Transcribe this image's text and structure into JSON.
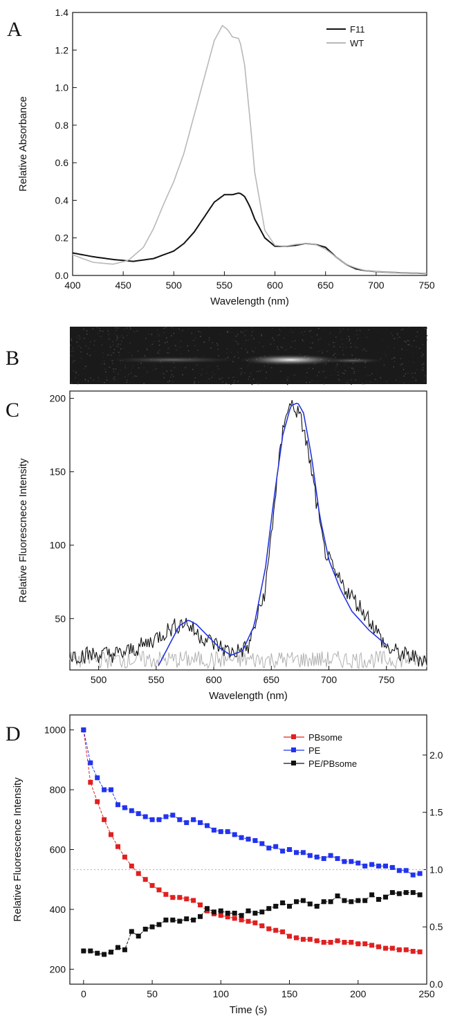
{
  "chart_data": [
    {
      "panel": "A",
      "type": "line",
      "xlabel": "Wavelength (nm)",
      "ylabel": "Relative Absorbance",
      "xlim": [
        400,
        750
      ],
      "ylim": [
        0,
        1.4
      ],
      "xticks": [
        400,
        450,
        500,
        550,
        600,
        650,
        700,
        750
      ],
      "yticks": [
        0.0,
        0.2,
        0.4,
        0.6,
        0.8,
        1.0,
        1.2,
        1.4
      ],
      "legend_position": "top-right",
      "series": [
        {
          "name": "F11",
          "color": "#111111",
          "x": [
            400,
            420,
            440,
            460,
            480,
            500,
            510,
            520,
            530,
            540,
            550,
            558,
            565,
            570,
            575,
            580,
            590,
            600,
            610,
            620,
            630,
            640,
            650,
            660,
            670,
            680,
            690,
            700,
            720,
            750
          ],
          "y": [
            0.12,
            0.1,
            0.085,
            0.075,
            0.09,
            0.13,
            0.17,
            0.23,
            0.31,
            0.39,
            0.43,
            0.43,
            0.44,
            0.42,
            0.37,
            0.3,
            0.2,
            0.155,
            0.155,
            0.16,
            0.17,
            0.165,
            0.15,
            0.1,
            0.06,
            0.035,
            0.025,
            0.02,
            0.015,
            0.01
          ]
        },
        {
          "name": "WT",
          "color": "#b8b8b8",
          "x": [
            400,
            420,
            440,
            455,
            470,
            480,
            490,
            500,
            510,
            520,
            530,
            540,
            548,
            553,
            558,
            565,
            570,
            575,
            580,
            590,
            600,
            610,
            620,
            630,
            640,
            650,
            660,
            670,
            680,
            690,
            700,
            720,
            750
          ],
          "y": [
            0.11,
            0.07,
            0.06,
            0.08,
            0.15,
            0.25,
            0.38,
            0.5,
            0.65,
            0.85,
            1.05,
            1.25,
            1.33,
            1.31,
            1.27,
            1.26,
            1.12,
            0.85,
            0.55,
            0.24,
            0.16,
            0.155,
            0.165,
            0.17,
            0.165,
            0.14,
            0.1,
            0.06,
            0.04,
            0.025,
            0.02,
            0.015,
            0.01
          ]
        }
      ]
    },
    {
      "panel": "B",
      "type": "image",
      "description_free": true
    },
    {
      "panel": "C",
      "type": "line",
      "xlabel": "Wavelength (nm)",
      "ylabel": "Relative Fluorescnece Intensity",
      "xlim": [
        475,
        785
      ],
      "ylim": [
        15,
        205
      ],
      "xticks": [
        500,
        550,
        600,
        650,
        700,
        750
      ],
      "yticks": [
        50,
        100,
        150,
        200
      ],
      "series": [
        {
          "name": "",
          "color": "#111111",
          "style": "noisy",
          "x": [
            475,
            520,
            540,
            560,
            575,
            585,
            600,
            615,
            630,
            645,
            655,
            662,
            668,
            672,
            678,
            685,
            695,
            705,
            720,
            735,
            750,
            765,
            785
          ],
          "y": [
            25,
            26,
            32,
            42,
            48,
            40,
            33,
            27,
            30,
            70,
            145,
            190,
            196,
            192,
            180,
            150,
            100,
            80,
            65,
            50,
            30,
            25,
            22
          ]
        },
        {
          "name": "",
          "color": "#2233dd",
          "style": "smooth",
          "x": [
            552,
            560,
            570,
            578,
            585,
            595,
            605,
            615,
            625,
            635,
            645,
            652,
            660,
            667,
            673,
            678,
            685,
            692,
            700,
            710,
            720,
            735,
            750
          ],
          "y": [
            18,
            30,
            45,
            49,
            46,
            38,
            30,
            25,
            28,
            45,
            85,
            130,
            175,
            195,
            197,
            190,
            160,
            120,
            90,
            70,
            55,
            42,
            32
          ]
        },
        {
          "name": "",
          "color": "#b0b0b0",
          "style": "noisy",
          "x": [
            475,
            785
          ],
          "y": [
            22,
            22
          ]
        }
      ]
    },
    {
      "panel": "D",
      "type": "scatter",
      "xlabel": "Time (s)",
      "ylabel": "Relative Fluorescence Intensity",
      "xlim": [
        -10,
        250
      ],
      "ylim": [
        150,
        1050
      ],
      "y2lim": [
        0.0,
        2.35
      ],
      "xticks": [
        0,
        50,
        100,
        150,
        200,
        250
      ],
      "yticks": [
        200,
        400,
        600,
        800,
        1000
      ],
      "y2ticks": [
        "0.0",
        "0.5",
        "1.0",
        "1.5",
        "2.0"
      ],
      "y2tick_values": [
        0.0,
        0.5,
        1.0,
        1.5,
        2.0
      ],
      "reference_line_y2": 1.0,
      "legend_position": "top-right",
      "series": [
        {
          "name": "PBsome",
          "color": "#e02020",
          "axis": "left",
          "x": [
            0,
            5,
            10,
            15,
            20,
            25,
            30,
            35,
            40,
            45,
            50,
            55,
            60,
            65,
            70,
            75,
            80,
            85,
            90,
            95,
            100,
            105,
            110,
            115,
            120,
            125,
            130,
            135,
            140,
            145,
            150,
            155,
            160,
            165,
            170,
            175,
            180,
            185,
            190,
            195,
            200,
            205,
            210,
            215,
            220,
            225,
            230,
            235,
            240,
            245
          ],
          "y": [
            1000,
            825,
            760,
            700,
            650,
            610,
            575,
            545,
            520,
            500,
            480,
            465,
            450,
            440,
            440,
            435,
            430,
            415,
            395,
            385,
            380,
            375,
            370,
            365,
            360,
            355,
            345,
            335,
            330,
            325,
            310,
            305,
            300,
            300,
            295,
            290,
            290,
            295,
            290,
            290,
            285,
            285,
            280,
            275,
            270,
            270,
            265,
            265,
            260,
            258
          ]
        },
        {
          "name": "PE",
          "color": "#2233ee",
          "axis": "left",
          "x": [
            0,
            5,
            10,
            15,
            20,
            25,
            30,
            35,
            40,
            45,
            50,
            55,
            60,
            65,
            70,
            75,
            80,
            85,
            90,
            95,
            100,
            105,
            110,
            115,
            120,
            125,
            130,
            135,
            140,
            145,
            150,
            155,
            160,
            165,
            170,
            175,
            180,
            185,
            190,
            195,
            200,
            205,
            210,
            215,
            220,
            225,
            230,
            235,
            240,
            245
          ],
          "y": [
            1000,
            890,
            840,
            800,
            800,
            750,
            740,
            730,
            720,
            710,
            700,
            700,
            710,
            715,
            700,
            690,
            700,
            690,
            680,
            665,
            660,
            660,
            650,
            640,
            635,
            630,
            620,
            605,
            610,
            595,
            600,
            590,
            590,
            580,
            575,
            570,
            580,
            570,
            560,
            560,
            555,
            545,
            550,
            545,
            545,
            540,
            530,
            530,
            515,
            520
          ]
        },
        {
          "name": "PE/PBsome",
          "color": "#111111",
          "axis": "right",
          "x": [
            0,
            5,
            10,
            15,
            20,
            25,
            30,
            35,
            40,
            45,
            50,
            55,
            60,
            65,
            70,
            75,
            80,
            85,
            90,
            95,
            100,
            105,
            110,
            115,
            120,
            125,
            130,
            135,
            140,
            145,
            150,
            155,
            160,
            165,
            170,
            175,
            180,
            185,
            190,
            195,
            200,
            205,
            210,
            215,
            220,
            225,
            230,
            235,
            240,
            245
          ],
          "y": [
            0.29,
            0.29,
            0.27,
            0.26,
            0.28,
            0.32,
            0.3,
            0.46,
            0.42,
            0.48,
            0.5,
            0.52,
            0.56,
            0.56,
            0.55,
            0.57,
            0.56,
            0.59,
            0.66,
            0.63,
            0.64,
            0.62,
            0.62,
            0.6,
            0.64,
            0.62,
            0.63,
            0.66,
            0.68,
            0.71,
            0.68,
            0.72,
            0.73,
            0.7,
            0.68,
            0.72,
            0.72,
            0.77,
            0.73,
            0.72,
            0.73,
            0.73,
            0.78,
            0.74,
            0.76,
            0.8,
            0.79,
            0.8,
            0.8,
            0.78
          ]
        }
      ]
    }
  ],
  "labels": {
    "A": "A",
    "B": "B",
    "C": "C",
    "D": "D"
  },
  "colors": {
    "ref_line": "#bbbbbb",
    "gel_bg": "#1a1a1a"
  }
}
